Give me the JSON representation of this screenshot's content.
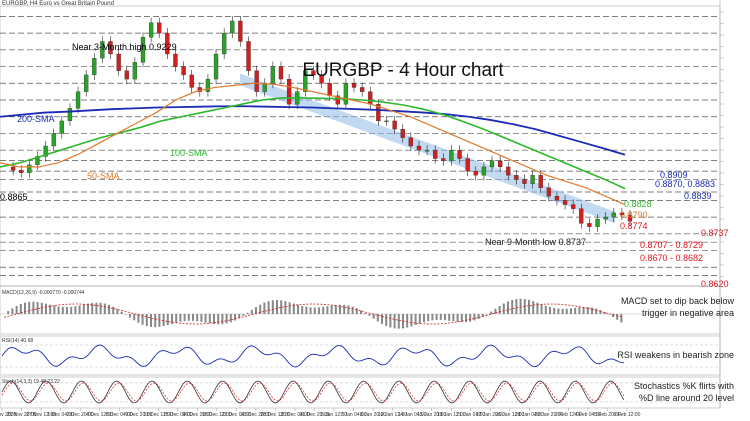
{
  "header": "EURGBP, H4   Euro vs Great Britain Pound",
  "chart_data": {
    "type": "line",
    "title": "EURGBP - 4 Hour chart",
    "x_ticks": [
      "24 Nov 2020",
      "25 Nov 20:00",
      "27 Nov 12:00",
      "1 Dec 04:00",
      "2 Dec 20:00",
      "4 Dec 12:00",
      "8 Dec 04:00",
      "9 Dec 20:00",
      "11 Dec 12:00",
      "15 Dec 04:00",
      "16 Dec 20:00",
      "18 Dec 12:00",
      "22 Dec 04:00",
      "23 Dec 20:00",
      "28 Dec 12:00",
      "30 Dec 04:00",
      "31 Dec 20:00",
      "5 Jan 12:00",
      "7 Jan 04:00",
      "8 Jan 20:00",
      "12 Jan 12:00",
      "14 Jan 04:00",
      "15 Jan 20:00",
      "19 Jan 12:00",
      "21 Jan 04:00",
      "22 Jan 20:00",
      "26 Jan 12:00",
      "28 Jan 04:00",
      "29 Jan 20:00",
      "2 Feb 12:00",
      "4 Feb 04:00",
      "5 Feb 20:00",
      "9 Feb 12:00"
    ],
    "ylim": [
      0.86,
      0.926
    ],
    "series": [
      {
        "name": "EURGBP",
        "values": [
          0.888,
          0.8872,
          0.8866,
          0.8885,
          0.8905,
          0.893,
          0.896,
          0.899,
          0.902,
          0.906,
          0.91,
          0.914,
          0.918,
          0.915,
          0.911,
          0.909,
          0.913,
          0.919,
          0.9225,
          0.92,
          0.915,
          0.912,
          0.91,
          0.907,
          0.906,
          0.909,
          0.915,
          0.92,
          0.9229,
          0.918,
          0.911,
          0.906,
          0.908,
          0.912,
          0.909,
          0.903,
          0.906,
          0.911,
          0.91,
          0.908,
          0.905,
          0.903,
          0.908,
          0.907,
          0.906,
          0.903,
          0.899,
          0.899,
          0.897,
          0.895,
          0.893,
          0.892,
          0.892,
          0.89,
          0.8895,
          0.892,
          0.89,
          0.887,
          0.886,
          0.888,
          0.8895,
          0.888,
          0.886,
          0.885,
          0.884,
          0.886,
          0.883,
          0.881,
          0.88,
          0.879,
          0.878,
          0.8745,
          0.8737,
          0.8755,
          0.876,
          0.877,
          0.8765,
          0.875
        ]
      },
      {
        "name": "200-SMA",
        "values": [
          0.9,
          0.9005,
          0.901,
          0.9012,
          0.9015,
          0.9018,
          0.902,
          0.9022,
          0.9023,
          0.9024,
          0.9025,
          0.9025,
          0.9024,
          0.9023,
          0.9022,
          0.902,
          0.9018,
          0.9016,
          0.9013,
          0.901,
          0.9006,
          0.9,
          0.8992,
          0.8982,
          0.897,
          0.8955,
          0.894,
          0.8925,
          0.8909
        ]
      },
      {
        "name": "100-SMA",
        "values": [
          0.888,
          0.889,
          0.8905,
          0.892,
          0.8935,
          0.895,
          0.8962,
          0.8975,
          0.899,
          0.9,
          0.901,
          0.902,
          0.903,
          0.904,
          0.9045,
          0.9045,
          0.9044,
          0.9043,
          0.904,
          0.9035,
          0.9028,
          0.9018,
          0.9005,
          0.8988,
          0.897,
          0.895,
          0.893,
          0.891,
          0.889,
          0.887,
          0.885,
          0.8828
        ]
      },
      {
        "name": "50-SMA",
        "values": [
          0.889,
          0.888,
          0.888,
          0.889,
          0.891,
          0.8935,
          0.896,
          0.8985,
          0.901,
          0.904,
          0.906,
          0.907,
          0.9075,
          0.908,
          0.9078,
          0.907,
          0.906,
          0.905,
          0.904,
          0.903,
          0.9015,
          0.9,
          0.898,
          0.896,
          0.894,
          0.892,
          0.89,
          0.888,
          0.886,
          0.8845,
          0.883,
          0.881,
          0.879
        ]
      }
    ],
    "levels": [
      {
        "value": 0.9229,
        "label": "Near 3-Month high 0.9229",
        "color": "#000000"
      },
      {
        "value": 0.8909,
        "label": "0.8909",
        "color": "#1a2bb5"
      },
      {
        "value": 0.887,
        "label": "0.8870, 0.8883",
        "color": "#1a2bb5"
      },
      {
        "value": 0.8839,
        "label": "0.8839",
        "color": "#1a2bb5"
      },
      {
        "value": 0.8828,
        "label": "0.8828",
        "color": "#2db82d"
      },
      {
        "value": 0.879,
        "label": "0.8790",
        "color": "#e07a2e"
      },
      {
        "value": 0.8774,
        "label": "0.8774",
        "color": "#e0141e"
      },
      {
        "value": 0.8737,
        "label": "0.8737",
        "color": "#e0141e"
      },
      {
        "value": 0.8707,
        "label": "0.8707 - 0.8729",
        "color": "#e0141e"
      },
      {
        "value": 0.867,
        "label": "0.8670 - 0.8682",
        "color": "#e0141e"
      },
      {
        "value": 0.862,
        "label": "0.8620",
        "color": "#e0141e"
      },
      {
        "value": 0.8865,
        "label": "0.8865",
        "color": "#000000"
      }
    ],
    "annotations": {
      "sma200": "200-SMA",
      "sma100": "100-SMA",
      "sma50": "50-SMA",
      "low": "Near 9-Month low 0.8737",
      "macd_note": "MACD set to dip back below trigger in negative area",
      "rsi_note": "RSI weakens in bearish zone",
      "stoch_note": "Stochastics %K flirts with %D line around 20 level"
    },
    "indicators": {
      "macd": {
        "label": "MACD(12,26,9) -0.000770 -0.000744"
      },
      "rsi": {
        "label": "RSI(14) 40.68"
      },
      "stoch": {
        "label": "Stoch(14,3,3) 19.48 23.22"
      }
    }
  },
  "colors": {
    "grid": "#555555",
    "up": "#2aa12a",
    "down": "#d11f1f",
    "sma200": "#1a2bb5",
    "sma100": "#2db82d",
    "sma50": "#e07a2e"
  }
}
